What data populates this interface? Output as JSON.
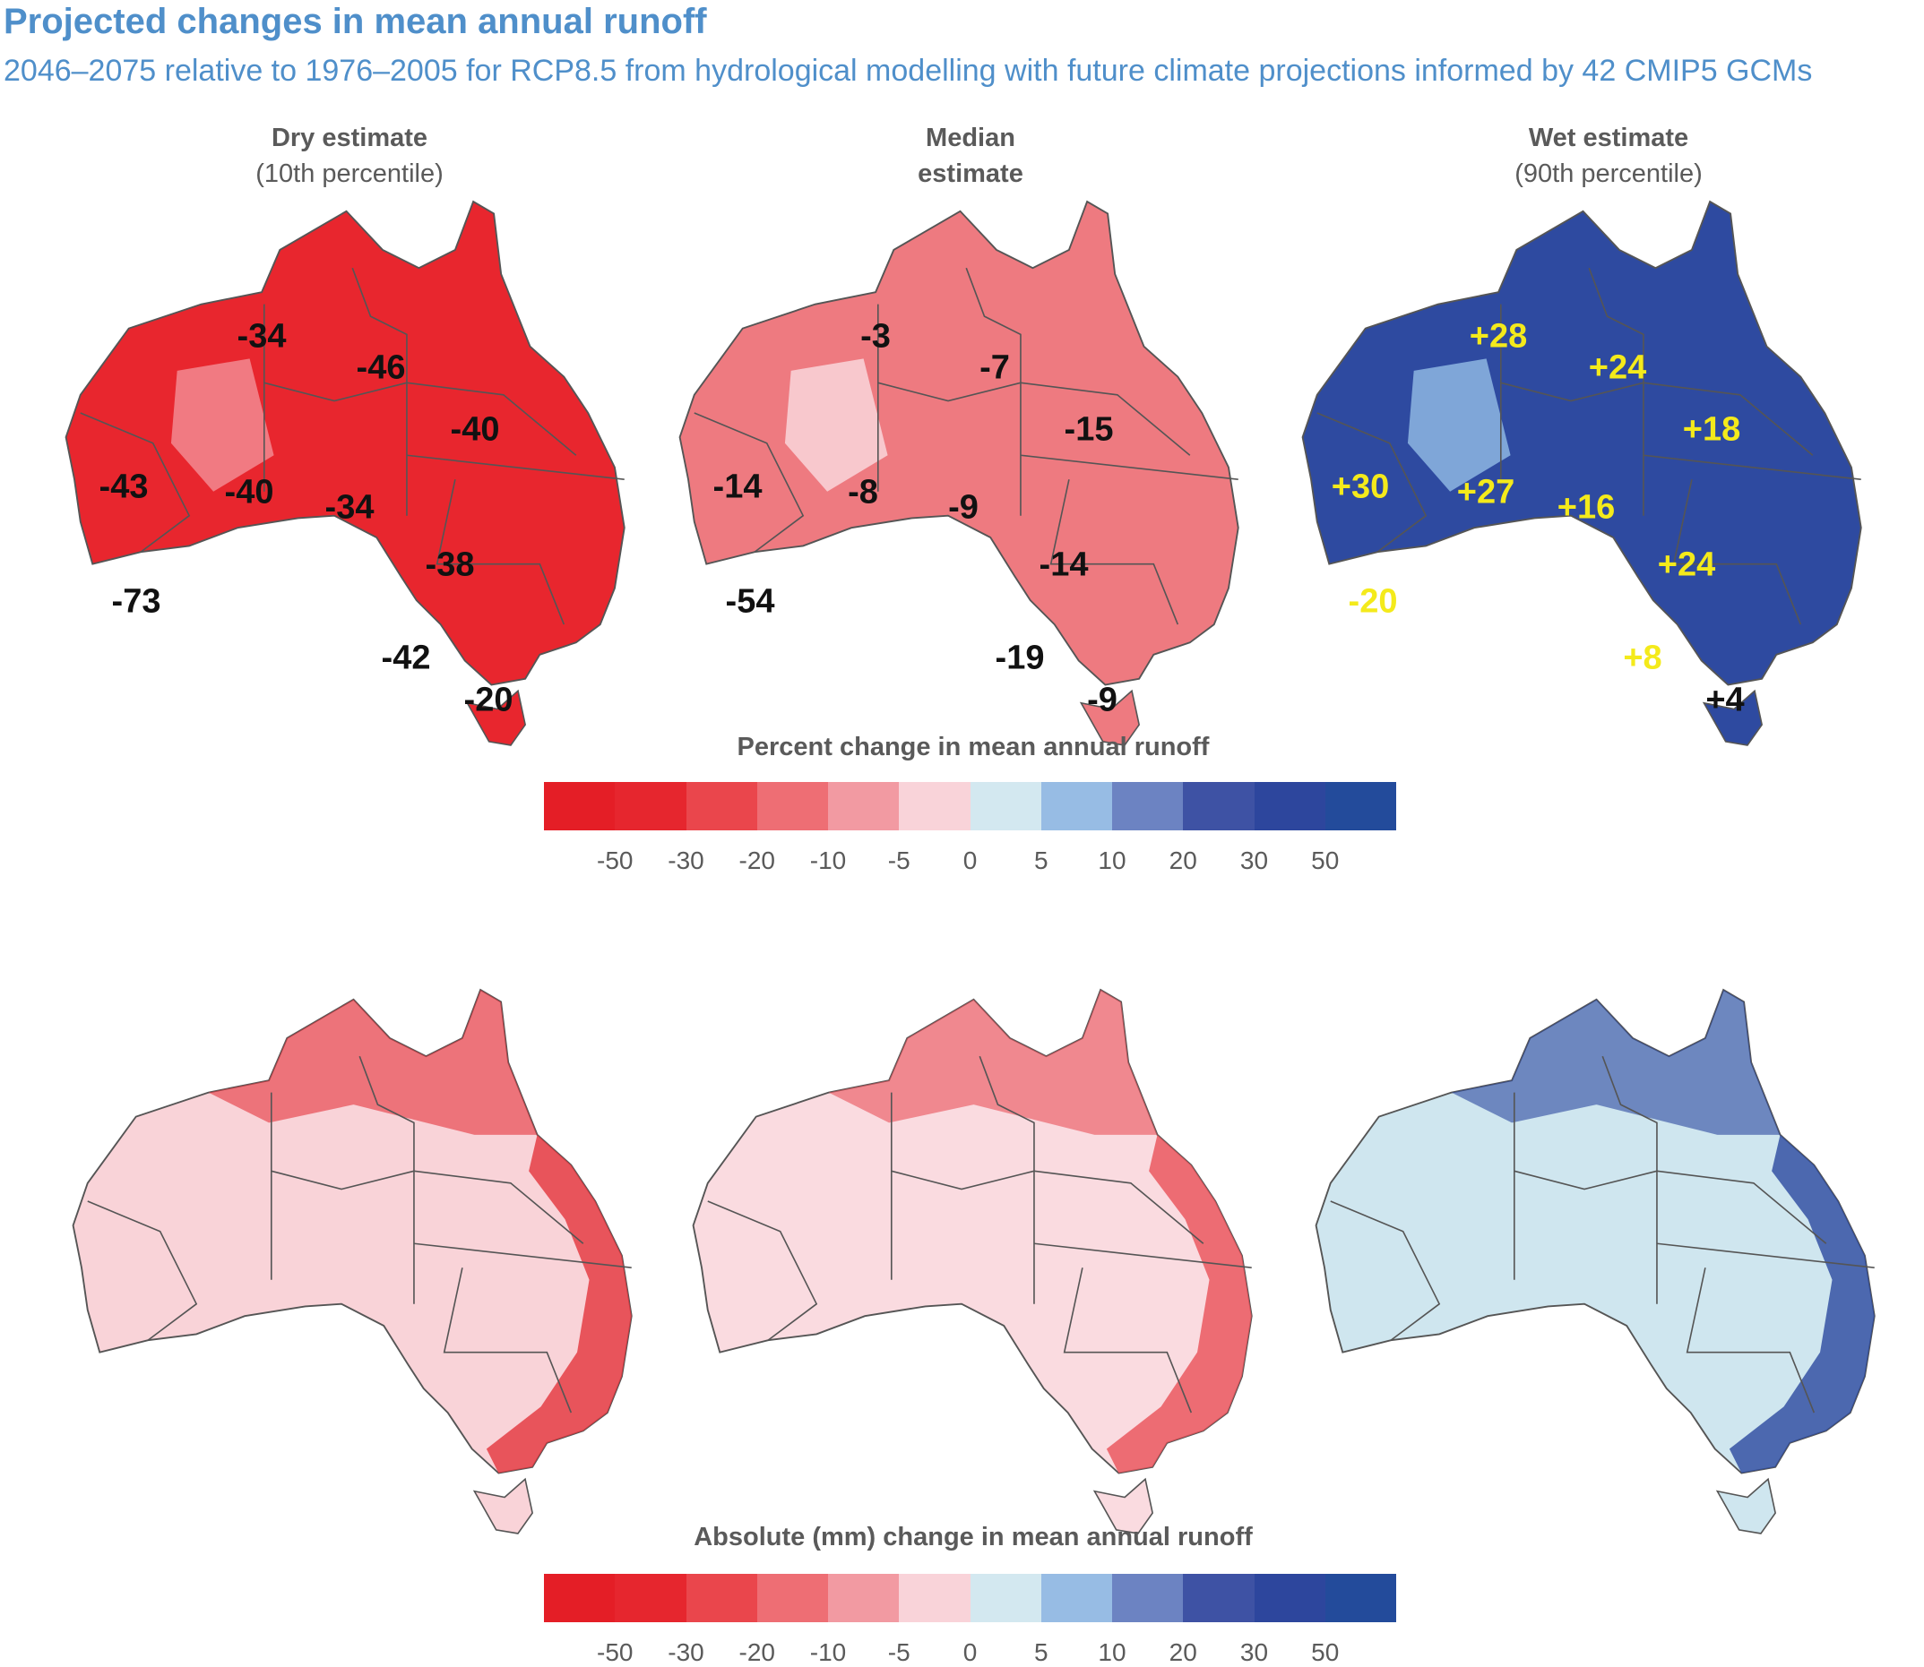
{
  "header": {
    "title": "Projected changes in mean annual runoff",
    "subtitle": "2046–2075 relative to 1976–2005 for RCP8.5 from hydrological modelling with future climate projections informed by 42 CMIP5 GCMs"
  },
  "columns": [
    {
      "heading": "Dry estimate",
      "subheading": "(10th percentile)"
    },
    {
      "heading": "Median",
      "subheading": "estimate"
    },
    {
      "heading": "Wet estimate",
      "subheading": "(90th percentile)"
    }
  ],
  "percent_maps": [
    {
      "id": "dry",
      "fill": "#e8262e",
      "tint": "#f28a90",
      "labels": [
        "-34",
        "-46",
        "-40",
        "-43",
        "-40",
        "-34",
        "-38",
        "-73",
        "-42"
      ],
      "tasmania": "-20",
      "label_color": "dark"
    },
    {
      "id": "median",
      "fill": "#ee7a80",
      "tint": "#f9d6da",
      "labels": [
        "-3",
        "-7",
        "-15",
        "-14",
        "-8",
        "-9",
        "-14",
        "-54",
        "-19"
      ],
      "tasmania": "-9",
      "label_color": "dark"
    },
    {
      "id": "wet",
      "fill": "#2e4aa0",
      "tint": "#8db6e2",
      "labels": [
        "+28",
        "+24",
        "+18",
        "+30",
        "+27",
        "+16",
        "+24",
        "-20",
        "+8"
      ],
      "tasmania": "+4",
      "label_color": "yellow"
    }
  ],
  "absolute_maps": [
    {
      "id": "dry",
      "fill": "#f9d3d8",
      "accent": "#e4343c"
    },
    {
      "id": "median",
      "fill": "#fadbe0",
      "accent": "#ea5058"
    },
    {
      "id": "wet",
      "fill": "#cfe6ef",
      "accent": "#2b489f"
    }
  ],
  "legends": [
    {
      "title": "Percent change in mean annual  runoff"
    },
    {
      "title": "Absolute (mm) change in mean annual runoff"
    }
  ],
  "scale": {
    "colors": [
      "#e41e26",
      "#e6262e",
      "#ea464c",
      "#ee6e74",
      "#f29aa2",
      "#f9d3d9",
      "#d3e8f0",
      "#97bce4",
      "#6c83c2",
      "#3e52a4",
      "#2d469d",
      "#234b9b"
    ],
    "ticks": [
      "-50",
      "-30",
      "-20",
      "-10",
      "-5",
      "0",
      "5",
      "10",
      "20",
      "30",
      "50"
    ]
  }
}
